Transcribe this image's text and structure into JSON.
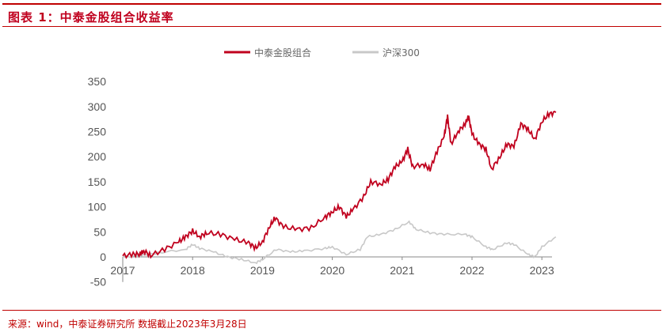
{
  "title": "图表 1：中泰金股组合收益率",
  "source": "来源：wind，中泰证券研究所 数据截止2023年3月28日",
  "chart_data": {
    "type": "line",
    "title": "图表 1：中泰金股组合收益率",
    "xlabel": "",
    "ylabel": "",
    "ylim": [
      -50,
      350
    ],
    "xlim": [
      2017,
      2023.25
    ],
    "yticks": [
      "-50",
      "0",
      "50",
      "100",
      "150",
      "200",
      "250",
      "300",
      "350"
    ],
    "xticks": [
      "2017",
      "2018",
      "2019",
      "2020",
      "2021",
      "2022",
      "2023"
    ],
    "legend_position": "top-center",
    "series": [
      {
        "name": "中泰金股组合",
        "color": "#c0001e",
        "x": [
          2017.0,
          2017.15,
          2017.25,
          2017.3,
          2017.4,
          2017.6,
          2017.8,
          2017.9,
          2018.0,
          2018.1,
          2018.2,
          2018.4,
          2018.6,
          2018.8,
          2018.9,
          2019.0,
          2019.1,
          2019.18,
          2019.3,
          2019.5,
          2019.7,
          2019.9,
          2020.0,
          2020.1,
          2020.2,
          2020.3,
          2020.45,
          2020.55,
          2020.7,
          2020.8,
          2020.9,
          2021.0,
          2021.08,
          2021.15,
          2021.3,
          2021.4,
          2021.5,
          2021.6,
          2021.65,
          2021.7,
          2021.8,
          2021.9,
          2021.95,
          2022.0,
          2022.1,
          2022.2,
          2022.28,
          2022.4,
          2022.5,
          2022.6,
          2022.7,
          2022.8,
          2022.9,
          2023.0,
          2023.1,
          2023.2
        ],
        "values": [
          2,
          5,
          6,
          12,
          3,
          15,
          30,
          40,
          52,
          40,
          48,
          45,
          35,
          28,
          18,
          30,
          60,
          78,
          60,
          55,
          58,
          80,
          90,
          100,
          80,
          95,
          120,
          150,
          145,
          155,
          180,
          190,
          215,
          180,
          185,
          175,
          210,
          240,
          280,
          225,
          250,
          265,
          280,
          245,
          225,
          215,
          175,
          200,
          225,
          220,
          265,
          255,
          235,
          270,
          285,
          288
        ]
      },
      {
        "name": "沪深300",
        "color": "#c8c8c8",
        "x": [
          2017.0,
          2017.3,
          2017.5,
          2017.9,
          2018.0,
          2018.1,
          2018.3,
          2018.5,
          2018.7,
          2018.9,
          2019.0,
          2019.2,
          2019.4,
          2019.6,
          2019.9,
          2020.0,
          2020.2,
          2020.4,
          2020.5,
          2020.7,
          2020.9,
          2021.1,
          2021.2,
          2021.4,
          2021.6,
          2021.9,
          2022.0,
          2022.2,
          2022.3,
          2022.5,
          2022.6,
          2022.8,
          2022.9,
          2023.0,
          2023.2
        ],
        "values": [
          0,
          3,
          8,
          15,
          25,
          17,
          10,
          0,
          -5,
          -12,
          -5,
          15,
          10,
          12,
          17,
          20,
          5,
          15,
          40,
          45,
          55,
          70,
          55,
          48,
          45,
          45,
          40,
          20,
          15,
          28,
          25,
          5,
          0,
          20,
          40
        ]
      }
    ]
  }
}
